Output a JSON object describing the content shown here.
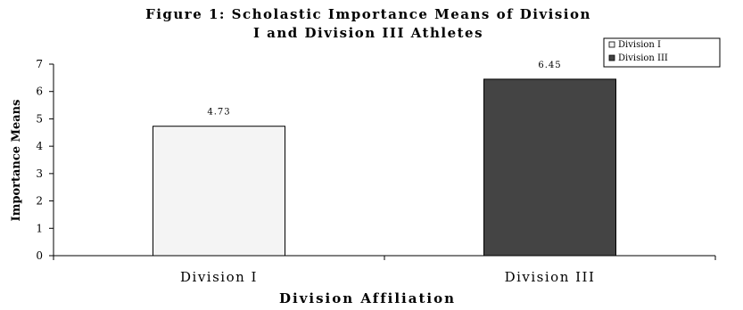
{
  "chart_data": {
    "type": "bar",
    "title_line1": "Figure 1: Scholastic Importance Means of Division",
    "title_line2": "I and Division III Athletes",
    "xlabel": "Division Affiliation",
    "ylabel": "Importance Means",
    "ylim": [
      0,
      7
    ],
    "yticks": [
      "0",
      "1",
      "2",
      "3",
      "4",
      "5",
      "6",
      "7"
    ],
    "categories": [
      "Division I",
      "Division III"
    ],
    "values": [
      4.73,
      6.45
    ],
    "data_labels": [
      "4.73",
      "6.45"
    ],
    "colors": [
      "#f4f4f4",
      "#444444"
    ],
    "legend": {
      "placement": "top-right",
      "entries": [
        "Division I",
        "Division III"
      ]
    },
    "grid": false
  }
}
